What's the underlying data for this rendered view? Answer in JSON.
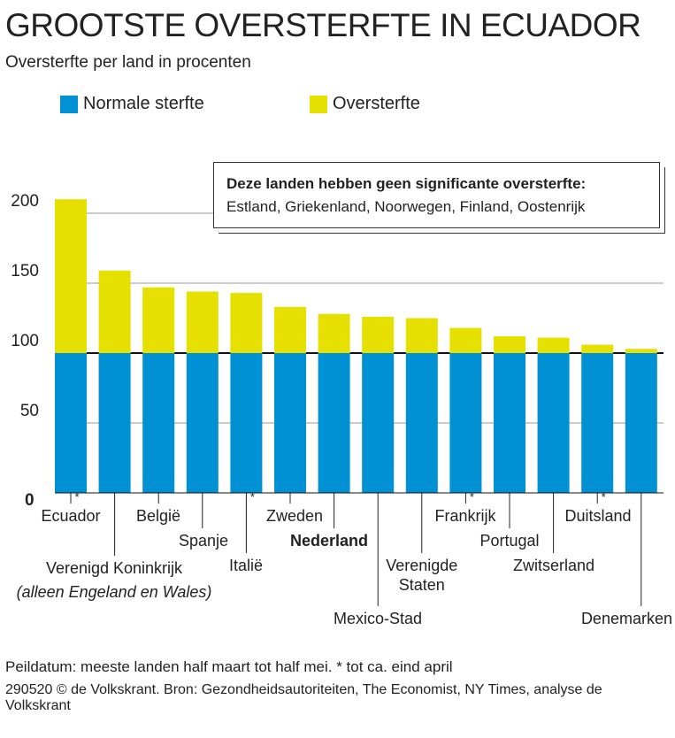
{
  "title": "GROOTSTE OVERSTERFTE IN ECUADOR",
  "subtitle": "Oversterfte per land in procenten",
  "legend": {
    "normal": "Normale sterfte",
    "excess": "Oversterfte"
  },
  "colors": {
    "normal": "#0090d4",
    "excess": "#e6e000"
  },
  "note": {
    "title": "Deze landen hebben geen significante oversterfte:",
    "text": "Estland, Griekenland, Noorwegen, Finland, Oostenrijk"
  },
  "footer": {
    "line1": "Peildatum: meeste landen half maart tot half mei. * tot ca. eind april",
    "line2": "290520 © de Volkskrant.  Bron: Gezondheidsautoriteiten, The Economist, NY Times, analyse de Volkskrant"
  },
  "chart_data": {
    "type": "bar",
    "stacked": true,
    "ylim": [
      0,
      220
    ],
    "yticks": [
      "0",
      "50",
      "100",
      "150",
      "200"
    ],
    "categories": [
      "Ecuador",
      "Verenigd Koninkrijk",
      "België",
      "Spanje",
      "Italië",
      "Zweden",
      "Nederland",
      "Mexico-Stad",
      "Verenigde Staten",
      "Frankrijk",
      "Portugal",
      "Zwitserland",
      "Duitsland",
      "Denemarken"
    ],
    "category_notes": {
      "Verenigd Koninkrijk": "(alleen Engeland en Wales)"
    },
    "asterisk": [
      "Ecuador",
      "Italië",
      "Frankrijk",
      "Duitsland"
    ],
    "highlight": "Nederland",
    "values": [
      210,
      159,
      147,
      144,
      143,
      133,
      128,
      126,
      125,
      118,
      112,
      111,
      106,
      103
    ],
    "series": [
      {
        "name": "Normale sterfte",
        "values": [
          100,
          100,
          100,
          100,
          100,
          100,
          100,
          100,
          100,
          100,
          100,
          100,
          100,
          100
        ]
      },
      {
        "name": "Oversterfte",
        "values": [
          110,
          59,
          47,
          44,
          43,
          33,
          28,
          26,
          25,
          18,
          12,
          11,
          6,
          3
        ]
      }
    ]
  }
}
